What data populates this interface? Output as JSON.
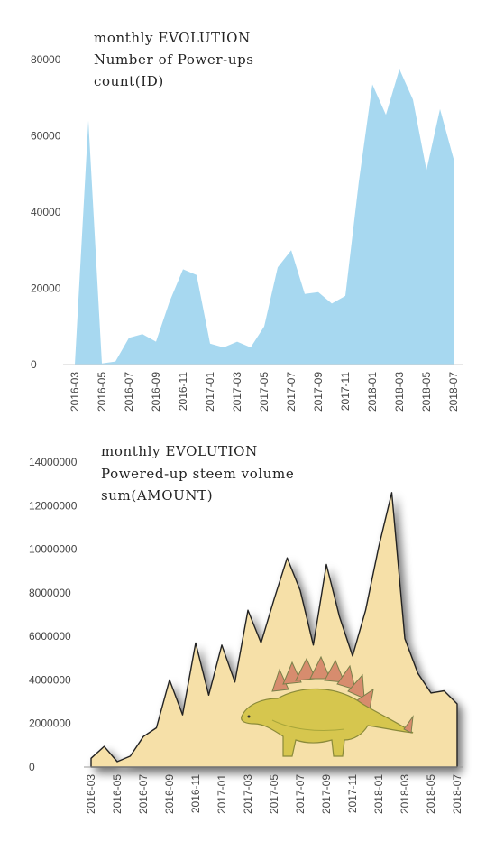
{
  "chart_data": [
    {
      "type": "area",
      "title_lines": [
        "monthly EVOLUTION",
        "Number of Power-ups",
        "count(ID)"
      ],
      "color": "#a7d8f0",
      "ylim": [
        0,
        80000
      ],
      "y_ticks": [
        "80000",
        "60000",
        "40000",
        "20000",
        "0"
      ],
      "x_tick_labels": [
        "2016-03",
        "2016-05",
        "2016-07",
        "2016-09",
        "2016-11",
        "2017-01",
        "2017-03",
        "2017-05",
        "2017-07",
        "2017-09",
        "2017-11",
        "2018-01",
        "2018-03",
        "2018-05",
        "2018-07"
      ],
      "x": [
        "2016-03",
        "2016-04",
        "2016-05",
        "2016-06",
        "2016-07",
        "2016-08",
        "2016-09",
        "2016-10",
        "2016-11",
        "2016-12",
        "2017-01",
        "2017-02",
        "2017-03",
        "2017-04",
        "2017-05",
        "2017-06",
        "2017-07",
        "2017-08",
        "2017-09",
        "2017-10",
        "2017-11",
        "2017-12",
        "2018-01",
        "2018-02",
        "2018-03",
        "2018-04",
        "2018-05",
        "2018-06",
        "2018-07"
      ],
      "values": [
        0,
        64000,
        300,
        800,
        7000,
        8000,
        6000,
        16500,
        25000,
        23500,
        5500,
        4500,
        6000,
        4500,
        10000,
        25500,
        30000,
        18500,
        19000,
        16000,
        18000,
        48000,
        73500,
        65500,
        77500,
        69500,
        51000,
        67000,
        54000
      ],
      "grid": false
    },
    {
      "type": "area",
      "title_lines": [
        "monthly EVOLUTION",
        "Powered-up steem volume",
        "sum(AMOUNT)"
      ],
      "color": "#f6e0a8",
      "ylim": [
        0,
        14000000
      ],
      "y_ticks": [
        "14000000",
        "12000000",
        "10000000",
        "8000000",
        "6000000",
        "4000000",
        "2000000",
        "0"
      ],
      "x_tick_labels": [
        "2016-03",
        "2016-05",
        "2016-07",
        "2016-09",
        "2016-11",
        "2017-01",
        "2017-03",
        "2017-05",
        "2017-07",
        "2017-09",
        "2017-11",
        "2018-01",
        "2018-03",
        "2018-05",
        "2018-07"
      ],
      "x": [
        "2016-03",
        "2016-04",
        "2016-05",
        "2016-06",
        "2016-07",
        "2016-08",
        "2016-09",
        "2016-10",
        "2016-11",
        "2016-12",
        "2017-01",
        "2017-02",
        "2017-03",
        "2017-04",
        "2017-05",
        "2017-06",
        "2017-07",
        "2017-08",
        "2017-09",
        "2017-10",
        "2017-11",
        "2017-12",
        "2018-01",
        "2018-02",
        "2018-03",
        "2018-04",
        "2018-05",
        "2018-06",
        "2018-07"
      ],
      "values": [
        400000,
        950000,
        250000,
        500000,
        1400000,
        1800000,
        4000000,
        2400000,
        5700000,
        3300000,
        5600000,
        3900000,
        7200000,
        5700000,
        7700000,
        9600000,
        8100000,
        5600000,
        9300000,
        6900000,
        5100000,
        7200000,
        10100000,
        12600000,
        5900000,
        4300000,
        3400000,
        3500000,
        2900000
      ],
      "grid": false
    }
  ]
}
